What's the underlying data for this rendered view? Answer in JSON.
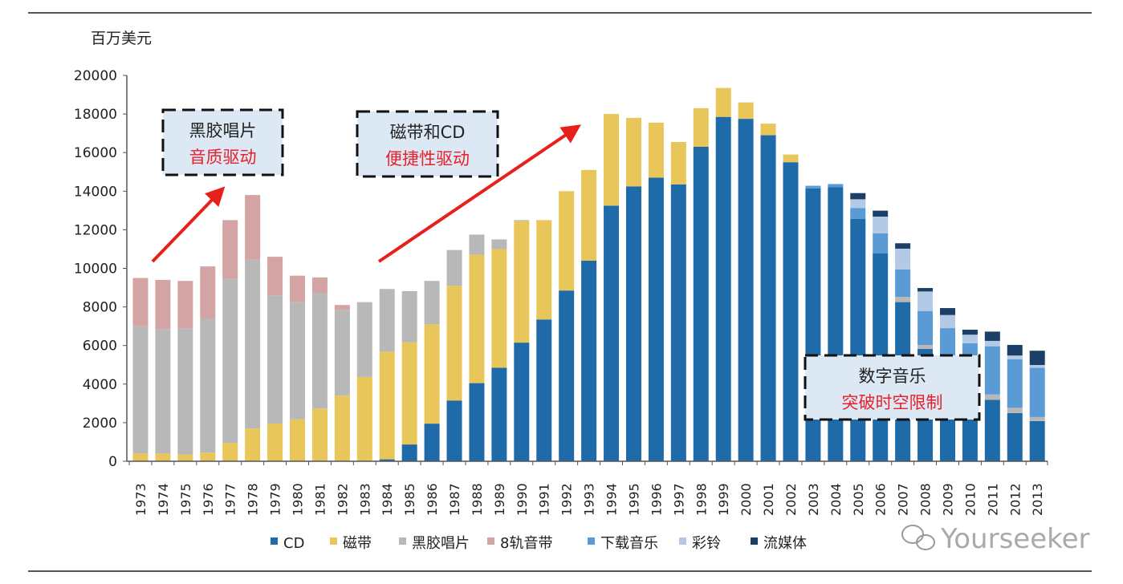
{
  "chart_data": {
    "type": "bar",
    "stacked": true,
    "ylabel": "百万美元",
    "ylim": [
      0,
      20000
    ],
    "yticks": [
      0,
      2000,
      4000,
      6000,
      8000,
      10000,
      12000,
      14000,
      16000,
      18000,
      20000
    ],
    "grid": false,
    "legend_position": "bottom",
    "categories": [
      "1973",
      "1974",
      "1975",
      "1976",
      "1977",
      "1978",
      "1979",
      "1980",
      "1981",
      "1982",
      "1983",
      "1984",
      "1985",
      "1986",
      "1987",
      "1988",
      "1989",
      "1990",
      "1991",
      "1992",
      "1993",
      "1994",
      "1995",
      "1996",
      "1997",
      "1998",
      "1999",
      "2000",
      "2001",
      "2002",
      "2003",
      "2004",
      "2005",
      "2006",
      "2007",
      "2008",
      "2009",
      "2010",
      "2011",
      "2012",
      "2013"
    ],
    "series": [
      {
        "name": "CD",
        "color": "#1f6aa8",
        "values": [
          0,
          0,
          0,
          0,
          0,
          0,
          0,
          0,
          0,
          0,
          0,
          100,
          870,
          1950,
          3150,
          4050,
          4850,
          6150,
          7350,
          8850,
          10400,
          13250,
          14250,
          14700,
          14350,
          16300,
          17850,
          17750,
          16900,
          15500,
          14140,
          14200,
          12570,
          10770,
          8250,
          5820,
          4350,
          3450,
          3190,
          2500,
          2080
        ]
      },
      {
        "name": "磁带",
        "color": "#e8c65a",
        "values": [
          400,
          400,
          350,
          450,
          950,
          1700,
          1950,
          2170,
          2730,
          3400,
          4370,
          5580,
          5300,
          5150,
          5950,
          6650,
          6150,
          6300,
          5150,
          5150,
          4700,
          4750,
          3550,
          2850,
          2200,
          2000,
          1500,
          850,
          600,
          400,
          0,
          0,
          0,
          0,
          0,
          0,
          0,
          0,
          0,
          0,
          0
        ]
      },
      {
        "name": "黑胶唱片",
        "color": "#b8b8b8",
        "values": [
          6600,
          6450,
          6550,
          6950,
          8500,
          8750,
          6650,
          6100,
          6000,
          4450,
          3880,
          3250,
          2650,
          2250,
          1850,
          1050,
          500,
          50,
          0,
          0,
          0,
          0,
          0,
          0,
          0,
          0,
          0,
          0,
          0,
          0,
          0,
          0,
          0,
          0,
          270,
          210,
          250,
          170,
          270,
          270,
          210
        ]
      },
      {
        "name": "8轨音带",
        "color": "#d4a4a4",
        "values": [
          2500,
          2550,
          2450,
          2700,
          3050,
          3350,
          2000,
          1350,
          800,
          250,
          0,
          0,
          0,
          0,
          0,
          0,
          0,
          0,
          0,
          0,
          0,
          0,
          0,
          0,
          0,
          0,
          0,
          0,
          0,
          0,
          0,
          0,
          0,
          0,
          0,
          0,
          0,
          0,
          0,
          0,
          0
        ]
      },
      {
        "name": "下载音乐",
        "color": "#5b9bd5",
        "values": [
          0,
          0,
          0,
          0,
          0,
          0,
          0,
          0,
          0,
          0,
          0,
          0,
          0,
          0,
          0,
          0,
          0,
          0,
          0,
          0,
          0,
          0,
          0,
          0,
          0,
          0,
          0,
          0,
          0,
          0,
          140,
          170,
          560,
          1040,
          1420,
          1760,
          2300,
          2500,
          2500,
          2520,
          2560
        ]
      },
      {
        "name": "彩铃",
        "color": "#b4c9e6",
        "values": [
          0,
          0,
          0,
          0,
          0,
          0,
          0,
          0,
          0,
          0,
          0,
          0,
          0,
          0,
          0,
          0,
          0,
          0,
          0,
          0,
          0,
          0,
          0,
          0,
          0,
          0,
          0,
          0,
          0,
          0,
          0,
          0,
          450,
          870,
          1080,
          1010,
          680,
          440,
          280,
          190,
          140
        ]
      },
      {
        "name": "流媒体",
        "color": "#1b3f66",
        "values": [
          0,
          0,
          0,
          0,
          0,
          0,
          0,
          0,
          0,
          0,
          0,
          0,
          0,
          0,
          0,
          0,
          0,
          0,
          0,
          0,
          0,
          0,
          0,
          0,
          0,
          0,
          0,
          0,
          0,
          0,
          0,
          0,
          320,
          310,
          280,
          180,
          360,
          260,
          480,
          550,
          740
        ]
      }
    ],
    "annotations": [
      {
        "line1": "黑胶唱片",
        "line2": "音质驱动"
      },
      {
        "line1": "磁带和CD",
        "line2": "便捷性驱动"
      },
      {
        "line1": "数字音乐",
        "line2": "突破时空限制"
      }
    ]
  },
  "watermark": "Yourseeker"
}
